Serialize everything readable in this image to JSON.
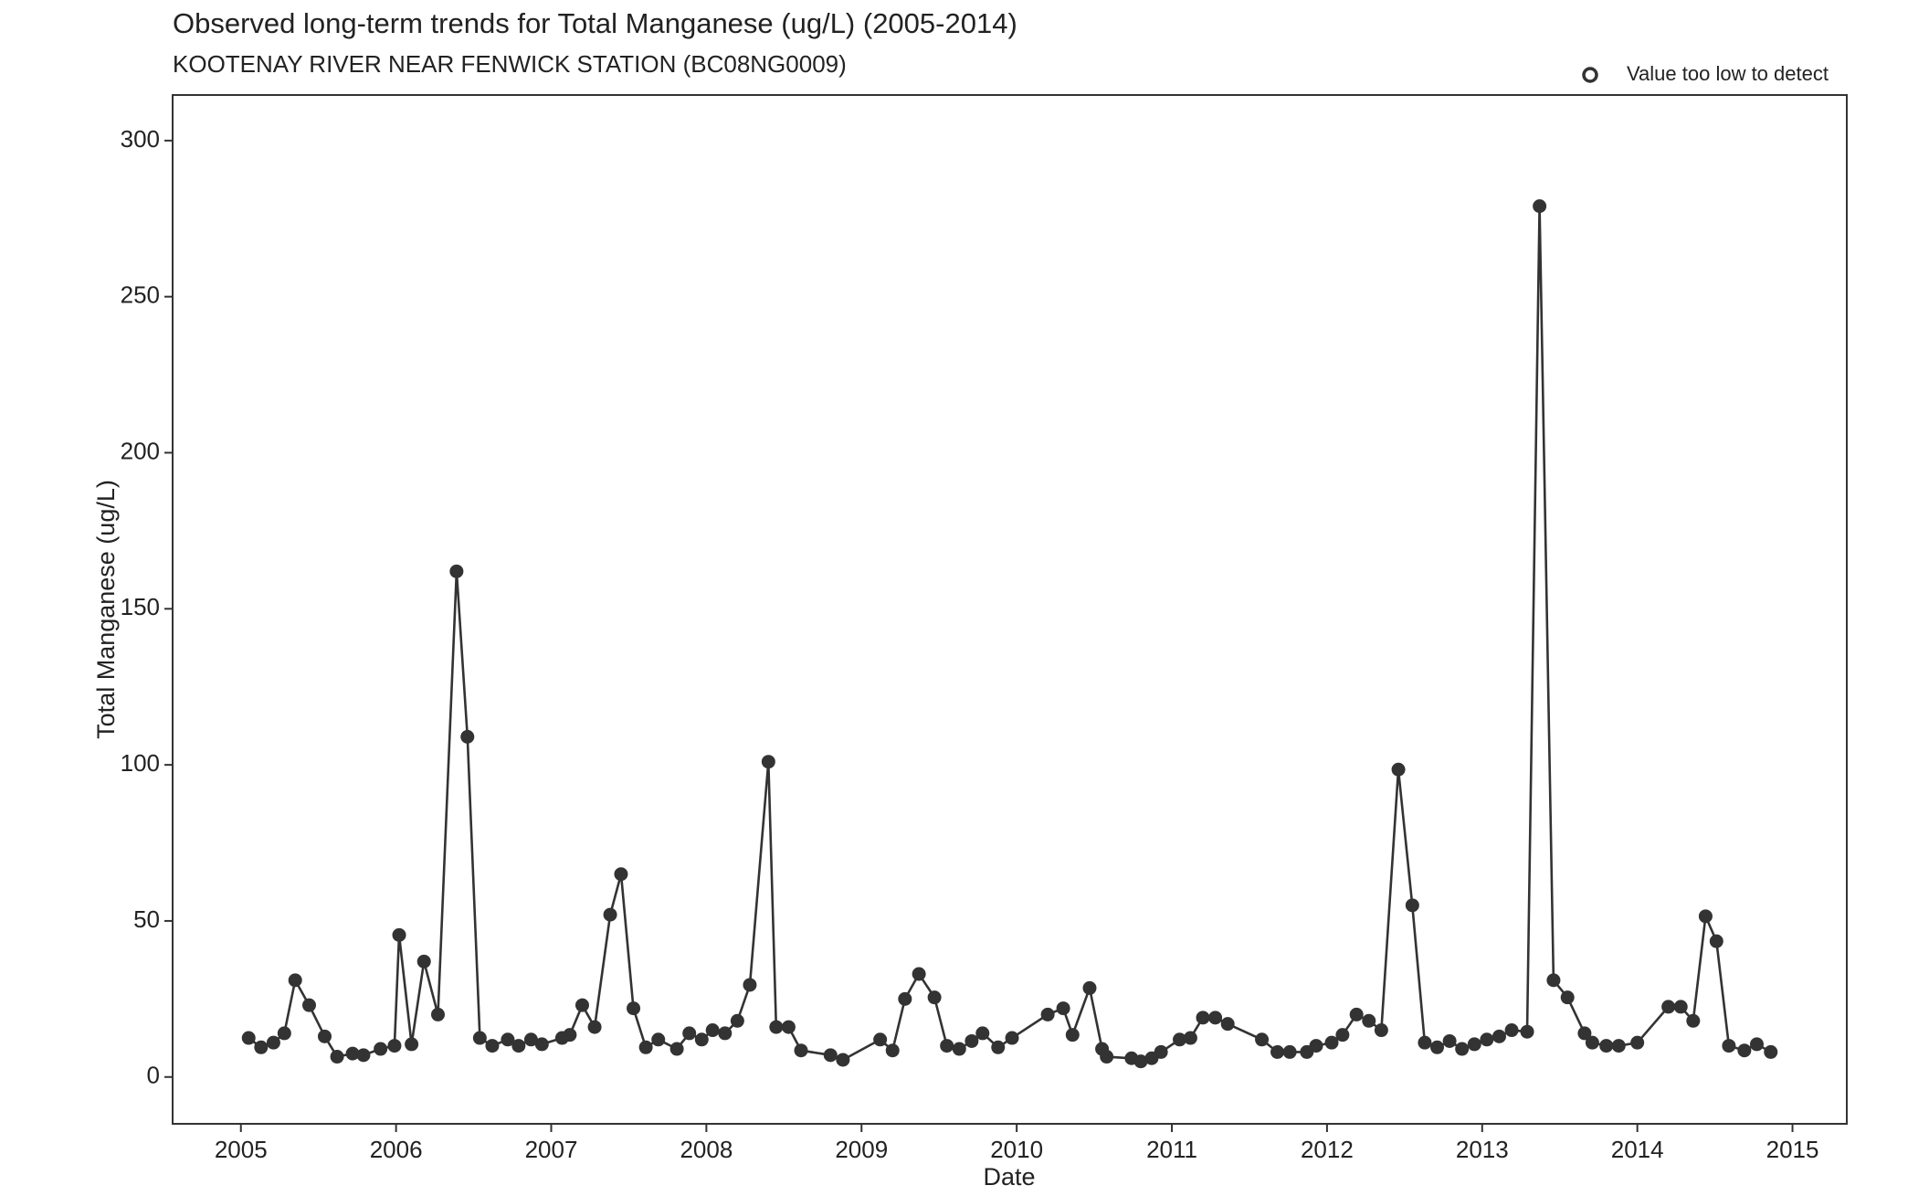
{
  "chart_data": {
    "type": "line",
    "title": "Observed long-term trends for Total Manganese (ug/L) (2005-2014)",
    "subtitle": "KOOTENAY RIVER NEAR FENWICK STATION (BC08NG0009)",
    "x_label": "Date",
    "y_label": "Total Manganese (ug/L)",
    "legend": {
      "label": "Value too low to detect",
      "position": "top-right"
    },
    "color": "#333333",
    "x": [
      2005.05,
      2005.13,
      2005.21,
      2005.28,
      2005.35,
      2005.44,
      2005.54,
      2005.62,
      2005.72,
      2005.79,
      2005.9,
      2005.99,
      2006.02,
      2006.1,
      2006.18,
      2006.27,
      2006.39,
      2006.46,
      2006.54,
      2006.62,
      2006.72,
      2006.79,
      2006.87,
      2006.94,
      2007.07,
      2007.12,
      2007.2,
      2007.28,
      2007.38,
      2007.45,
      2007.53,
      2007.61,
      2007.69,
      2007.81,
      2007.89,
      2007.97,
      2008.04,
      2008.12,
      2008.2,
      2008.28,
      2008.4,
      2008.45,
      2008.53,
      2008.61,
      2008.8,
      2008.88,
      2009.12,
      2009.2,
      2009.28,
      2009.37,
      2009.47,
      2009.55,
      2009.63,
      2009.71,
      2009.78,
      2009.88,
      2009.97,
      2010.2,
      2010.3,
      2010.36,
      2010.47,
      2010.55,
      2010.58,
      2010.74,
      2010.8,
      2010.87,
      2010.93,
      2011.05,
      2011.12,
      2011.2,
      2011.28,
      2011.36,
      2011.58,
      2011.68,
      2011.76,
      2011.87,
      2011.93,
      2012.03,
      2012.1,
      2012.19,
      2012.27,
      2012.35,
      2012.46,
      2012.55,
      2012.63,
      2012.71,
      2012.79,
      2012.87,
      2012.95,
      2013.03,
      2013.11,
      2013.19,
      2013.29,
      2013.37,
      2013.46,
      2013.55,
      2013.66,
      2013.71,
      2013.8,
      2013.88,
      2014.0,
      2014.2,
      2014.28,
      2014.36,
      2014.44,
      2014.51,
      2014.59,
      2014.69,
      2014.77,
      2014.86
    ],
    "values": [
      12.5,
      9.5,
      11,
      14,
      31,
      23,
      13,
      6.5,
      7.5,
      7,
      9,
      10,
      45.5,
      10.5,
      37,
      20,
      162,
      109,
      12.5,
      10,
      12,
      10,
      12,
      10.5,
      12.5,
      13.5,
      23,
      16,
      52,
      65,
      22,
      9.5,
      12,
      9,
      14,
      12,
      15,
      14,
      18,
      29.5,
      101,
      16,
      16,
      8.5,
      7,
      5.5,
      12,
      8.5,
      25,
      33,
      25.5,
      10,
      9,
      11.5,
      14,
      9.5,
      12.5,
      20,
      22,
      13.5,
      28.5,
      9,
      6.5,
      6,
      5,
      6,
      8,
      12,
      12.5,
      19,
      19,
      17,
      12,
      8,
      8,
      8,
      10,
      11,
      13.5,
      20,
      18,
      15,
      98.5,
      55,
      11,
      9.5,
      11.5,
      9,
      10.5,
      12,
      13,
      15,
      14.5,
      279,
      31,
      25.5,
      14,
      11,
      10,
      10,
      11,
      22.5,
      22.5,
      18,
      51.5,
      43.5,
      10,
      8.5,
      10.5,
      8
    ],
    "xlim": [
      2004.56,
      2015.35
    ],
    "ylim": [
      -15,
      314.6
    ],
    "xticks": [
      2005,
      2006,
      2007,
      2008,
      2009,
      2010,
      2011,
      2012,
      2013,
      2014,
      2015
    ],
    "yticks": [
      0,
      50,
      100,
      150,
      200,
      250,
      300
    ]
  }
}
